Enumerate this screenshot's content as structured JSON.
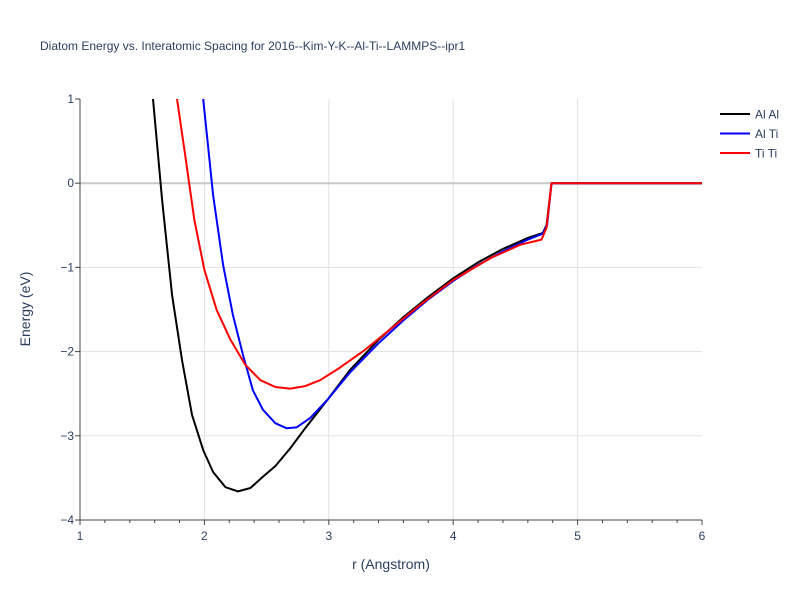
{
  "chart_data": {
    "type": "line",
    "title": "Diatom Energy vs. Interatomic Spacing for 2016--Kim-Y-K--Al-Ti--LAMMPS--ipr1",
    "xlabel": "r (Angstrom)",
    "ylabel": "Energy (eV)",
    "xlim": [
      1,
      6
    ],
    "ylim": [
      -4,
      1
    ],
    "xticks": [
      1,
      2,
      3,
      4,
      5,
      6
    ],
    "yticks": [
      1,
      0,
      -1,
      -2,
      -3,
      -4
    ],
    "ytick_labels": [
      "1",
      "0",
      "−1",
      "−2",
      "−3",
      "−4"
    ],
    "grid": true,
    "legend_position": "top-right",
    "series": [
      {
        "name": "Al Al",
        "color": "#000000",
        "x": [
          1.587,
          1.66,
          1.74,
          1.82,
          1.9,
          1.99,
          2.07,
          2.17,
          2.27,
          2.37,
          2.46,
          2.57,
          2.69,
          2.81,
          2.99,
          3.17,
          3.4,
          3.6,
          3.8,
          4.0,
          4.2,
          4.4,
          4.6,
          4.72,
          4.75,
          4.79,
          6.0
        ],
        "y": [
          1.0,
          -0.2,
          -1.33,
          -2.1,
          -2.75,
          -3.17,
          -3.43,
          -3.61,
          -3.66,
          -3.62,
          -3.5,
          -3.36,
          -3.15,
          -2.91,
          -2.57,
          -2.22,
          -1.86,
          -1.59,
          -1.35,
          -1.13,
          -0.94,
          -0.78,
          -0.65,
          -0.59,
          -0.5,
          0.0,
          0.0
        ]
      },
      {
        "name": "Al Ti",
        "color": "#0000ff",
        "x": [
          1.99,
          2.07,
          2.15,
          2.23,
          2.31,
          2.39,
          2.47,
          2.57,
          2.66,
          2.74,
          2.85,
          2.99,
          3.17,
          3.4,
          3.6,
          3.8,
          4.0,
          4.2,
          4.4,
          4.6,
          4.72,
          4.755,
          4.79,
          6.0
        ],
        "y": [
          1.0,
          -0.14,
          -0.97,
          -1.57,
          -2.04,
          -2.46,
          -2.69,
          -2.85,
          -2.91,
          -2.9,
          -2.79,
          -2.57,
          -2.25,
          -1.9,
          -1.63,
          -1.38,
          -1.16,
          -0.97,
          -0.81,
          -0.67,
          -0.6,
          -0.5,
          0.0,
          0.0
        ]
      },
      {
        "name": "Ti Ti",
        "color": "#ff0000",
        "x": [
          1.78,
          1.84,
          1.92,
          2.0,
          2.1,
          2.21,
          2.33,
          2.45,
          2.57,
          2.69,
          2.81,
          2.93,
          3.09,
          3.29,
          3.49,
          3.73,
          4.0,
          4.3,
          4.54,
          4.71,
          4.75,
          4.79,
          6.0
        ],
        "y": [
          1.0,
          0.39,
          -0.44,
          -1.03,
          -1.51,
          -1.86,
          -2.16,
          -2.34,
          -2.42,
          -2.44,
          -2.41,
          -2.34,
          -2.19,
          -1.98,
          -1.74,
          -1.45,
          -1.15,
          -0.89,
          -0.73,
          -0.67,
          -0.53,
          0.0,
          0.0
        ]
      }
    ]
  }
}
